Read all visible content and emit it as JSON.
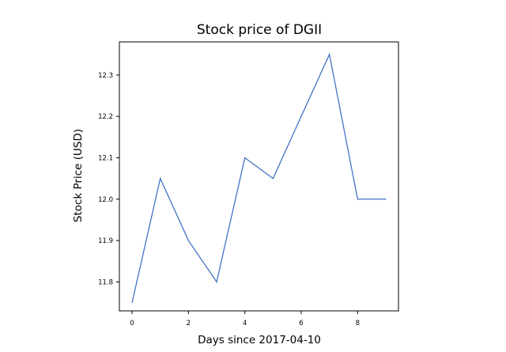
{
  "chart_data": {
    "type": "line",
    "title": "Stock price of DGII",
    "xlabel": "Days since 2017-04-10",
    "ylabel": "Stock Price (USD)",
    "x": [
      0,
      1,
      2,
      3,
      4,
      5,
      6,
      7,
      8,
      9
    ],
    "series": [
      {
        "values": [
          11.75,
          12.05,
          11.9,
          11.8,
          12.1,
          12.05,
          12.2,
          12.35,
          12.0,
          12.0
        ],
        "color": "#4472c4"
      }
    ],
    "xlim": [
      -0.45,
      9.45
    ],
    "ylim": [
      11.73,
      12.38
    ],
    "xticks": [
      0,
      2,
      4,
      6,
      8
    ],
    "xtick_labels": [
      "0",
      "2",
      "4",
      "6",
      "8"
    ],
    "yticks": [
      11.8,
      11.9,
      12.0,
      12.1,
      12.2,
      12.3
    ],
    "ytick_labels": [
      "11.8",
      "11.9",
      "12.0",
      "12.1",
      "12.2",
      "12.3"
    ],
    "grid": false,
    "legend": "none"
  }
}
